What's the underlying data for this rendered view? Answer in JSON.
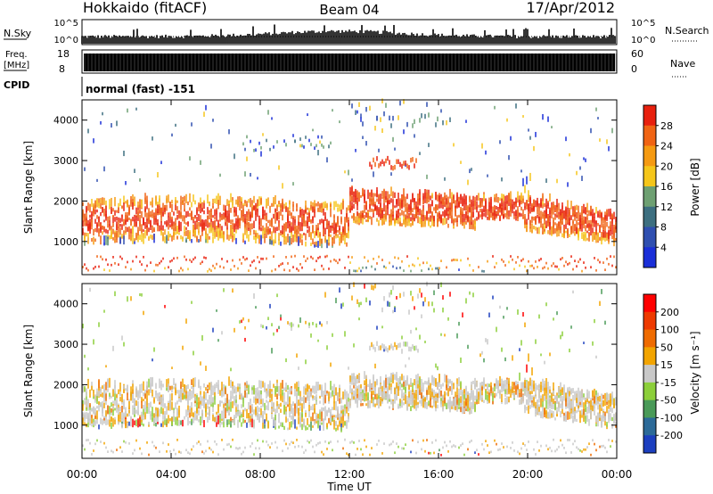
{
  "header": {
    "title": "Hokkaido (fitACF)",
    "beam": "Beam 04",
    "date": "17/Apr/2012"
  },
  "top_panels": {
    "nsky_label": "N.Sky",
    "nsky_ticks": [
      "10^5",
      "10^0"
    ],
    "nsearch_label": "N.Search",
    "nsearch_ticks": [
      "10^5",
      "10^0"
    ],
    "freq_label": "Freq.",
    "freq_unit": "[MHz]",
    "freq_ticks": [
      "18",
      "8"
    ],
    "nave_label": "Nave",
    "nave_ticks": [
      "60",
      "0"
    ],
    "cpid_label": "CPID",
    "cpid_text": "normal (fast) -151"
  },
  "colors": {
    "power_scale": [
      "#1a2fd8",
      "#2f4fb0",
      "#3d6f80",
      "#6ea072",
      "#f5c61a",
      "#f59a12",
      "#f06414",
      "#e8200e"
    ],
    "velocity_scale": [
      "#1c3fbf",
      "#2c6a98",
      "#4a9a58",
      "#8ccf3a",
      "#c8c8c8",
      "#f2a400",
      "#ef6b00",
      "#ee3a00",
      "#ff0000"
    ]
  },
  "chart_data": [
    {
      "type": "heatmap",
      "ylabel": "Slant Range [km]",
      "xlabel": "",
      "x_ticks": [
        "00:00",
        "04:00",
        "08:00",
        "12:00",
        "16:00",
        "20:00",
        "00:00"
      ],
      "xlim_hours": [
        0,
        24
      ],
      "y_ticks": [
        1000,
        2000,
        3000,
        4000
      ],
      "ylim": [
        180,
        4500
      ],
      "colorbar": {
        "label": "Power [dB]",
        "ticks": [
          4,
          8,
          12,
          16,
          20,
          24,
          28
        ]
      }
    },
    {
      "type": "heatmap",
      "ylabel": "Slant Range [km]",
      "xlabel": "Time UT",
      "x_ticks": [
        "00:00",
        "04:00",
        "08:00",
        "12:00",
        "16:00",
        "20:00",
        "00:00"
      ],
      "xlim_hours": [
        0,
        24
      ],
      "y_ticks": [
        1000,
        2000,
        3000,
        4000
      ],
      "ylim": [
        180,
        4500
      ],
      "colorbar": {
        "label": "Velocity [m s⁻¹]",
        "ticks": [
          200,
          100,
          50,
          15,
          -15,
          -50,
          -100,
          -200
        ]
      }
    }
  ]
}
